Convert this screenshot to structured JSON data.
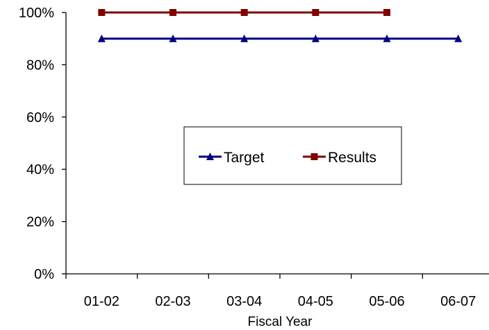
{
  "chart_data": {
    "type": "line",
    "title": "",
    "xlabel": "Fiscal Year",
    "ylabel": "",
    "categories": [
      "01-02",
      "02-03",
      "03-04",
      "04-05",
      "05-06",
      "06-07"
    ],
    "ylim": [
      0,
      100
    ],
    "yticks": [
      "0%",
      "20%",
      "40%",
      "60%",
      "80%",
      "100%"
    ],
    "grid": false,
    "legend_position": "center",
    "series": [
      {
        "name": "Target",
        "values": [
          90,
          90,
          90,
          90,
          90,
          90
        ],
        "color": "#000080",
        "marker": "triangle"
      },
      {
        "name": "Results",
        "values": [
          100,
          100,
          100,
          100,
          100,
          null
        ],
        "color": "#800000",
        "marker": "square"
      }
    ]
  }
}
